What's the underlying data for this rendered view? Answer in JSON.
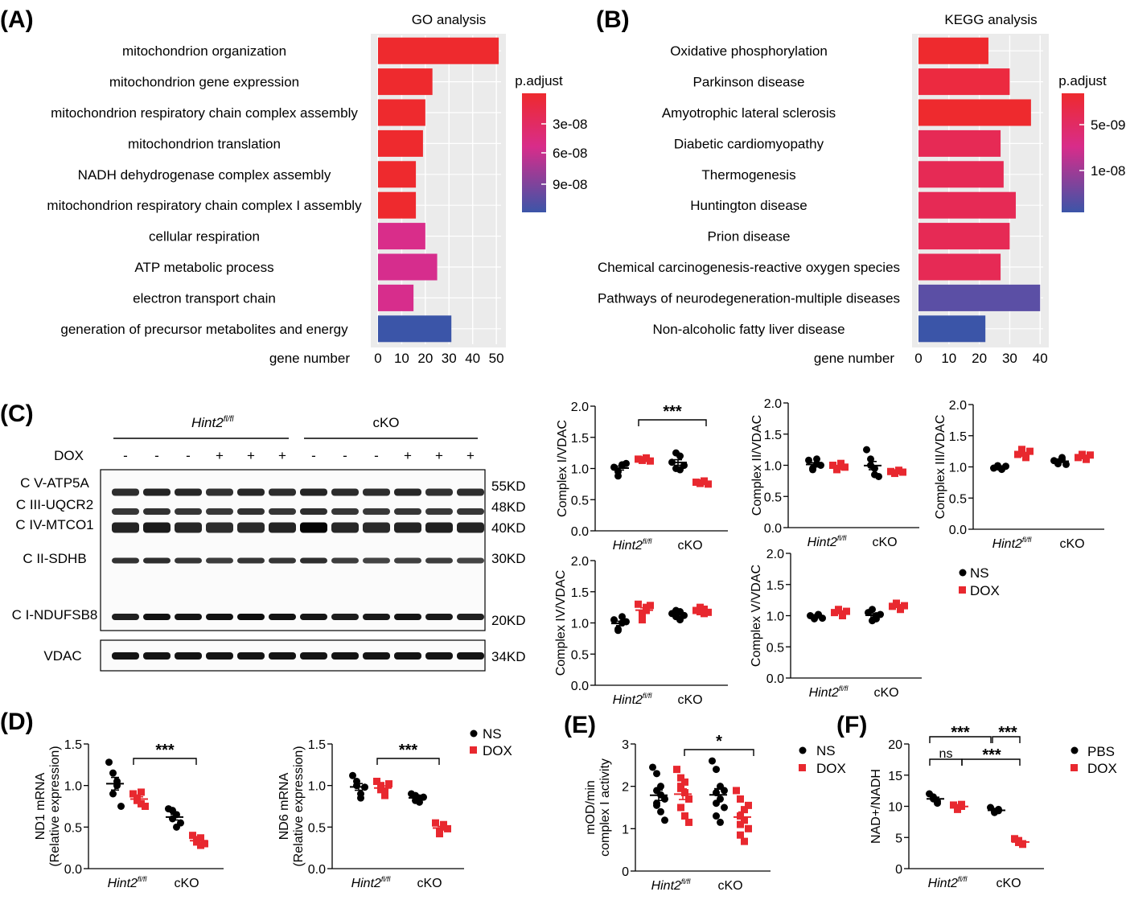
{
  "colors": {
    "red": "#EE2A2E",
    "blue": "#3B55A8",
    "ns": "#000000",
    "dox": "#E8282F"
  },
  "panelA": {
    "letter": "(A)",
    "chart_data": {
      "type": "bar",
      "orientation": "horizontal",
      "title": "GO analysis",
      "xlabel": "gene number",
      "xlim": [
        0,
        52
      ],
      "xticks": [
        0,
        10,
        20,
        30,
        40,
        50
      ],
      "categories": [
        "mitochondrion organization",
        "mitochondrion gene expression",
        "mitochondrion respiratory chain complex assembly",
        "mitochondrion translation",
        "NADH dehydrogenase complex assembly",
        "mitochondrion respiratory chain complex I assembly",
        "cellular respiration",
        "ATP metabolic process",
        "electron transport chain",
        "generation of precursor metabolites and energy"
      ],
      "values": [
        51,
        23,
        20,
        19,
        16,
        16,
        20,
        25,
        15,
        31
      ],
      "colors": [
        "#EE2A2E",
        "#EE2A2E",
        "#EE2A2E",
        "#EE2A2E",
        "#EE2A2E",
        "#EE2A2E",
        "#D92D8A",
        "#D62D8D",
        "#D72D8C",
        "#3B55A8"
      ],
      "legend": {
        "title": "p.adjust",
        "labels": [
          "3e-08",
          "6e-08",
          "9e-08"
        ],
        "position": "right"
      }
    }
  },
  "panelB": {
    "letter": "(B)",
    "chart_data": {
      "type": "bar",
      "orientation": "horizontal",
      "title": "KEGG analysis",
      "xlabel": "gene number",
      "xlim": [
        0,
        41
      ],
      "xticks": [
        0,
        10,
        20,
        30,
        40
      ],
      "categories": [
        "Oxidative phosphorylation",
        "Parkinson disease",
        "Amyotrophic lateral sclerosis",
        "Diabetic cardiomyopathy",
        "Thermogenesis",
        "Huntington disease",
        "Prion disease",
        "Chemical carcinogenesis-reactive oxygen species",
        "Pathways of neurodegeneration-multiple diseases",
        "Non-alcoholic fatty liver disease"
      ],
      "values": [
        23,
        30,
        37,
        27,
        28,
        32,
        30,
        27,
        40,
        22
      ],
      "colors": [
        "#EE2A2E",
        "#EC2A40",
        "#EE2A2E",
        "#E62A55",
        "#E62A55",
        "#E62A55",
        "#E62A55",
        "#E62A55",
        "#5B4FA5",
        "#3B55A8"
      ],
      "legend": {
        "title": "p.adjust",
        "labels": [
          "5e-09",
          "1e-08"
        ],
        "position": "right"
      }
    }
  },
  "panelC": {
    "letter": "(C)",
    "groups": [
      "Hint2",
      "cKO"
    ],
    "group_super": "fl/fl",
    "dox_label": "DOX",
    "lane_signs": [
      "-",
      "-",
      "-",
      "+",
      "+",
      "+",
      "-",
      "-",
      "-",
      "+",
      "+",
      "+"
    ],
    "bands": [
      {
        "label": "C V-ATP5A",
        "size": "55KD"
      },
      {
        "label": "C III-UQCR2",
        "size": "48KD"
      },
      {
        "label": "C IV-MTCO1",
        "size": "40KD"
      },
      {
        "label": "C II-SDHB",
        "size": "30KD"
      },
      {
        "label": "C I-NDUFSB8",
        "size": "20KD"
      }
    ],
    "vdac": {
      "label": "VDAC",
      "size": "34KD"
    },
    "legend": [
      "NS",
      "DOX"
    ],
    "plots": [
      {
        "ylabel": "Complex I/VDAC",
        "sig": "***",
        "yticks": [
          "0.0",
          "0.5",
          "1.0",
          "1.5",
          "2.0"
        ],
        "chart_data": {
          "type": "scatter",
          "ylim": [
            0,
            2
          ],
          "groups": [
            "Hint2fl/fl",
            "cKO"
          ],
          "series": [
            {
              "name": "NS",
              "group": 0,
              "values": [
                1.02,
                0.95,
                1.05,
                0.88,
                1.06,
                1.08
              ]
            },
            {
              "name": "DOX",
              "group": 0,
              "values": [
                1.15,
                1.13,
                1.17,
                1.14,
                1.16,
                1.12
              ]
            },
            {
              "name": "NS",
              "group": 1,
              "values": [
                1.1,
                1.25,
                0.98,
                1.0,
                1.2,
                1.05
              ]
            },
            {
              "name": "DOX",
              "group": 1,
              "values": [
                0.78,
                0.76,
                0.8,
                0.77,
                0.79,
                0.75
              ]
            }
          ]
        }
      },
      {
        "ylabel": "Complex II/VDAC",
        "sig": "",
        "yticks": [
          "0.0",
          "0.5",
          "1.0",
          "1.5",
          "2.0"
        ],
        "chart_data": {
          "type": "scatter",
          "ylim": [
            0,
            2
          ],
          "groups": [
            "Hint2fl/fl",
            "cKO"
          ],
          "series": [
            {
              "name": "NS",
              "group": 0,
              "values": [
                1.08,
                0.95,
                1.02,
                0.93,
                1.1,
                1.0
              ]
            },
            {
              "name": "DOX",
              "group": 0,
              "values": [
                1.0,
                0.95,
                0.98,
                0.93,
                1.03,
                0.97
              ]
            },
            {
              "name": "NS",
              "group": 1,
              "values": [
                1.25,
                1.1,
                0.85,
                1.0,
                0.95,
                0.82
              ]
            },
            {
              "name": "DOX",
              "group": 1,
              "values": [
                0.9,
                0.88,
                0.92,
                0.87,
                0.91,
                0.89
              ]
            }
          ]
        }
      },
      {
        "ylabel": "Complex III/VDAC",
        "sig": "",
        "yticks": [
          "0.0",
          "0.5",
          "1.0",
          "1.5",
          "2.0"
        ],
        "chart_data": {
          "type": "scatter",
          "ylim": [
            0,
            2
          ],
          "groups": [
            "Hint2fl/fl",
            "cKO"
          ],
          "series": [
            {
              "name": "NS",
              "group": 0,
              "values": [
                0.98,
                1.0,
                0.96,
                1.02,
                0.97,
                1.01
              ]
            },
            {
              "name": "DOX",
              "group": 0,
              "values": [
                1.2,
                1.28,
                1.15,
                1.22,
                1.18,
                1.25
              ]
            },
            {
              "name": "NS",
              "group": 1,
              "values": [
                1.1,
                1.05,
                1.15,
                1.08,
                1.12,
                1.04
              ]
            },
            {
              "name": "DOX",
              "group": 1,
              "values": [
                1.15,
                1.2,
                1.12,
                1.18,
                1.14,
                1.19
              ]
            }
          ]
        }
      },
      {
        "ylabel": "Complex IV/VDAC",
        "sig": "",
        "yticks": [
          "0.0",
          "0.5",
          "1.0",
          "1.5",
          "2.0"
        ],
        "chart_data": {
          "type": "scatter",
          "ylim": [
            0,
            2
          ],
          "groups": [
            "Hint2fl/fl",
            "cKO"
          ],
          "series": [
            {
              "name": "NS",
              "group": 0,
              "values": [
                1.05,
                0.9,
                1.1,
                0.88,
                1.0,
                1.02
              ]
            },
            {
              "name": "DOX",
              "group": 0,
              "values": [
                1.3,
                1.15,
                1.25,
                1.05,
                1.2,
                1.28
              ]
            },
            {
              "name": "NS",
              "group": 1,
              "values": [
                1.15,
                1.2,
                1.05,
                1.1,
                1.18,
                1.12
              ]
            },
            {
              "name": "DOX",
              "group": 1,
              "values": [
                1.2,
                1.25,
                1.15,
                1.18,
                1.22,
                1.17
              ]
            }
          ]
        }
      },
      {
        "ylabel": "Complex V/VDAC",
        "sig": "",
        "yticks": [
          "0.0",
          "0.5",
          "1.0",
          "1.5",
          "2.0"
        ],
        "chart_data": {
          "type": "scatter",
          "ylim": [
            0,
            2
          ],
          "groups": [
            "Hint2fl/fl",
            "cKO"
          ],
          "series": [
            {
              "name": "NS",
              "group": 0,
              "values": [
                1.0,
                0.95,
                1.02,
                0.97,
                1.01,
                0.96
              ]
            },
            {
              "name": "DOX",
              "group": 0,
              "values": [
                1.05,
                1.1,
                1.0,
                1.08,
                1.03,
                1.07
              ]
            },
            {
              "name": "NS",
              "group": 1,
              "values": [
                1.05,
                0.92,
                1.0,
                1.1,
                0.95,
                1.02
              ]
            },
            {
              "name": "DOX",
              "group": 1,
              "values": [
                1.15,
                1.2,
                1.1,
                1.18,
                1.13,
                1.16
              ]
            }
          ]
        }
      }
    ]
  },
  "panelD": {
    "letter": "(D)",
    "legend": [
      "NS",
      "DOX"
    ],
    "plots": [
      {
        "ylabel1": "ND1 mRNA",
        "ylabel2": "(Relative expression)",
        "sig": "***",
        "yticks": [
          "0.0",
          "0.5",
          "1.0",
          "1.5"
        ],
        "chart_data": {
          "type": "scatter",
          "ylim": [
            0,
            1.5
          ],
          "groups": [
            "Hint2fl/fl",
            "cKO"
          ],
          "series": [
            {
              "name": "NS",
              "group": 0,
              "values": [
                1.28,
                1.15,
                1.0,
                0.9,
                1.05,
                0.75
              ]
            },
            {
              "name": "DOX",
              "group": 0,
              "values": [
                0.9,
                0.85,
                0.78,
                0.82,
                0.92,
                0.75
              ]
            },
            {
              "name": "NS",
              "group": 1,
              "values": [
                0.72,
                0.6,
                0.5,
                0.7,
                0.65,
                0.55
              ]
            },
            {
              "name": "DOX",
              "group": 1,
              "values": [
                0.4,
                0.35,
                0.28,
                0.32,
                0.37,
                0.3
              ]
            }
          ]
        }
      },
      {
        "ylabel1": "ND6 mRNA",
        "ylabel2": "(Relative expression)",
        "sig": "***",
        "yticks": [
          "0.0",
          "0.5",
          "1.0",
          "1.5"
        ],
        "chart_data": {
          "type": "scatter",
          "ylim": [
            0,
            1.5
          ],
          "groups": [
            "Hint2fl/fl",
            "cKO"
          ],
          "series": [
            {
              "name": "NS",
              "group": 0,
              "values": [
                1.12,
                1.0,
                0.9,
                1.05,
                0.85,
                0.98
              ]
            },
            {
              "name": "DOX",
              "group": 0,
              "values": [
                1.05,
                0.95,
                0.88,
                1.0,
                0.92,
                1.02
              ]
            },
            {
              "name": "NS",
              "group": 1,
              "values": [
                0.9,
                0.82,
                0.85,
                0.88,
                0.8,
                0.86
              ]
            },
            {
              "name": "DOX",
              "group": 1,
              "values": [
                0.55,
                0.45,
                0.5,
                0.42,
                0.53,
                0.48
              ]
            }
          ]
        }
      }
    ]
  },
  "panelE": {
    "letter": "(E)",
    "legend": [
      "NS",
      "DOX"
    ],
    "ylabel1": "mOD/min",
    "ylabel2": "complex I activity",
    "sig": "*",
    "yticks": [
      "0",
      "1",
      "2",
      "3"
    ],
    "chart_data": {
      "type": "scatter",
      "ylim": [
        0,
        3
      ],
      "groups": [
        "Hint2fl/fl",
        "cKO"
      ],
      "series": [
        {
          "name": "NS",
          "group": 0,
          "values": [
            2.45,
            2.3,
            2.0,
            1.9,
            1.8,
            1.7,
            1.6,
            1.4,
            1.2,
            1.55
          ]
        },
        {
          "name": "DOX",
          "group": 0,
          "values": [
            2.4,
            2.2,
            2.1,
            1.95,
            1.85,
            1.7,
            1.5,
            1.3,
            1.15,
            2.0
          ]
        },
        {
          "name": "NS",
          "group": 1,
          "values": [
            2.6,
            2.4,
            2.0,
            1.85,
            1.7,
            1.5,
            1.3,
            1.15,
            1.9,
            1.6
          ]
        },
        {
          "name": "DOX",
          "group": 1,
          "values": [
            1.9,
            1.7,
            1.45,
            1.3,
            1.2,
            1.0,
            0.85,
            0.7,
            1.55,
            1.1
          ]
        }
      ]
    }
  },
  "panelF": {
    "letter": "(F)",
    "legend": [
      "PBS",
      "DOX"
    ],
    "ylabel": "NAD+/NADH",
    "sig_labels": [
      "***",
      "***",
      "ns",
      "***"
    ],
    "yticks": [
      "0",
      "5",
      "10",
      "15",
      "20"
    ],
    "chart_data": {
      "type": "scatter",
      "ylim": [
        0,
        20
      ],
      "groups": [
        "Hint2fl/fl",
        "cKO"
      ],
      "series": [
        {
          "name": "PBS",
          "group": 0,
          "values": [
            12.0,
            11.5,
            10.8,
            11.2,
            10.5
          ]
        },
        {
          "name": "DOX",
          "group": 0,
          "values": [
            10.2,
            9.8,
            10.0,
            9.5,
            10.3
          ]
        },
        {
          "name": "PBS",
          "group": 1,
          "values": [
            9.8,
            9.2,
            9.5,
            9.0,
            9.3
          ]
        },
        {
          "name": "DOX",
          "group": 1,
          "values": [
            4.8,
            4.2,
            4.0,
            4.5,
            3.9
          ]
        }
      ]
    }
  }
}
